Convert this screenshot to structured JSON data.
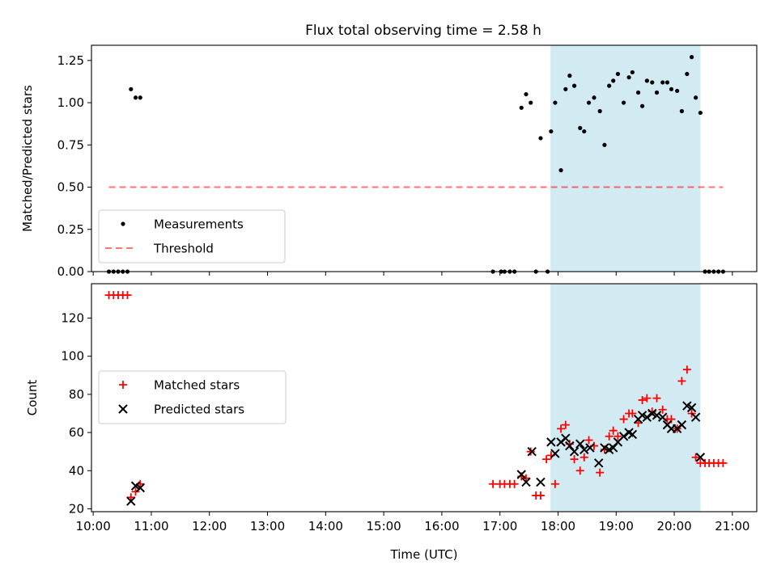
{
  "figure": {
    "title": "Flux total observing time = 2.58 h"
  },
  "colors": {
    "highlight": "#add8e6",
    "measurement": "#000000",
    "threshold": "#ff0000",
    "matched": "#ff0000",
    "predicted": "#000000"
  },
  "chart_data": [
    {
      "type": "scatter",
      "ylabel": "Matched/Predicted stars",
      "ylim": [
        0,
        1.34
      ],
      "xlim": [
        9.97,
        21.42
      ],
      "y_ticks": [
        "0.00",
        "0.25",
        "0.50",
        "0.75",
        "1.00",
        "1.25"
      ],
      "x_tick_labels_shown": false,
      "shaded_span": [
        17.87,
        20.45
      ],
      "legend": {
        "placement": "lower-left",
        "entries": [
          "Measurements",
          "Threshold"
        ]
      },
      "series": [
        {
          "name": "Measurements",
          "marker": "dot",
          "x": [
            10.27,
            10.35,
            10.43,
            10.51,
            10.59,
            10.65,
            10.73,
            10.81,
            16.88,
            17.02,
            17.08,
            17.17,
            17.25,
            17.37,
            17.45,
            17.53,
            17.62,
            17.7,
            17.82,
            17.88,
            17.95,
            18.05,
            18.13,
            18.2,
            18.28,
            18.38,
            18.45,
            18.53,
            18.62,
            18.72,
            18.8,
            18.88,
            18.95,
            19.03,
            19.13,
            19.22,
            19.28,
            19.38,
            19.45,
            19.53,
            19.62,
            19.7,
            19.8,
            19.88,
            19.95,
            20.05,
            20.13,
            20.22,
            20.3,
            20.37,
            20.45,
            20.53,
            20.6,
            20.68,
            20.76,
            20.84
          ],
          "y": [
            0.0,
            0.0,
            0.0,
            0.0,
            0.0,
            1.08,
            1.03,
            1.03,
            0.0,
            0.0,
            0.0,
            0.0,
            0.0,
            0.97,
            1.05,
            1.0,
            0.0,
            0.79,
            0.0,
            0.83,
            1.0,
            0.6,
            1.08,
            1.16,
            1.1,
            0.85,
            0.83,
            1.0,
            1.03,
            0.95,
            0.75,
            1.1,
            1.13,
            1.17,
            1.0,
            1.15,
            1.18,
            1.06,
            0.98,
            1.13,
            1.12,
            1.06,
            1.12,
            1.12,
            1.08,
            1.07,
            0.95,
            1.17,
            1.27,
            1.03,
            0.94,
            0.0,
            0.0,
            0.0,
            0.0,
            0.0
          ]
        },
        {
          "name": "Threshold",
          "marker": "dashed-line",
          "x": [
            10.27,
            20.84
          ],
          "y": [
            0.5,
            0.5
          ]
        }
      ]
    },
    {
      "type": "scatter",
      "xlabel": "Time (UTC)",
      "ylabel": "Count",
      "ylim": [
        18.5,
        138
      ],
      "xlim": [
        9.97,
        21.42
      ],
      "x_ticks": [
        "10:00",
        "11:00",
        "12:00",
        "13:00",
        "14:00",
        "15:00",
        "16:00",
        "17:00",
        "18:00",
        "19:00",
        "20:00",
        "21:00"
      ],
      "y_ticks": [
        "20",
        "40",
        "60",
        "80",
        "100",
        "120"
      ],
      "shaded_span": [
        17.87,
        20.45
      ],
      "legend": {
        "placement": "center-left",
        "entries": [
          "Matched stars",
          "Predicted stars"
        ]
      },
      "series": [
        {
          "name": "Matched stars",
          "marker": "plus",
          "x": [
            10.27,
            10.35,
            10.43,
            10.51,
            10.59,
            10.65,
            10.73,
            10.81,
            16.88,
            17.0,
            17.08,
            17.17,
            17.25,
            17.37,
            17.45,
            17.53,
            17.62,
            17.7,
            17.8,
            17.88,
            17.95,
            18.05,
            18.13,
            18.2,
            18.28,
            18.38,
            18.45,
            18.53,
            18.62,
            18.72,
            18.8,
            18.88,
            18.95,
            19.03,
            19.13,
            19.22,
            19.28,
            19.38,
            19.45,
            19.53,
            19.62,
            19.7,
            19.8,
            19.88,
            19.95,
            20.05,
            20.13,
            20.22,
            20.3,
            20.37,
            20.45,
            20.53,
            20.6,
            20.68,
            20.76,
            20.84
          ],
          "y": [
            132,
            132,
            132,
            132,
            132,
            26,
            29,
            33,
            33,
            33,
            33,
            33,
            33,
            37,
            36,
            50,
            27,
            27,
            46,
            48,
            33,
            62,
            64,
            54,
            46,
            40,
            47,
            56,
            53,
            39,
            51,
            58,
            61,
            58,
            67,
            70,
            70,
            65,
            77,
            78,
            71,
            78,
            72,
            67,
            67,
            62,
            87,
            93,
            70,
            47,
            44,
            44,
            44,
            44,
            44,
            44
          ]
        },
        {
          "name": "Predicted stars",
          "marker": "x",
          "x": [
            10.65,
            10.73,
            10.81,
            17.37,
            17.45,
            17.55,
            17.7,
            17.88,
            17.95,
            18.05,
            18.13,
            18.2,
            18.28,
            18.38,
            18.45,
            18.55,
            18.7,
            18.8,
            18.88,
            18.95,
            19.03,
            19.13,
            19.22,
            19.28,
            19.38,
            19.45,
            19.53,
            19.62,
            19.7,
            19.8,
            19.88,
            19.95,
            20.05,
            20.13,
            20.22,
            20.3,
            20.37,
            20.45
          ],
          "y": [
            24,
            32,
            31,
            38,
            34,
            50,
            34,
            55,
            49,
            55,
            57,
            53,
            50,
            54,
            51,
            52,
            44,
            52,
            51,
            52,
            55,
            58,
            60,
            59,
            67,
            69,
            68,
            70,
            69,
            68,
            64,
            62,
            62,
            64,
            74,
            73,
            68,
            47
          ]
        }
      ]
    }
  ]
}
